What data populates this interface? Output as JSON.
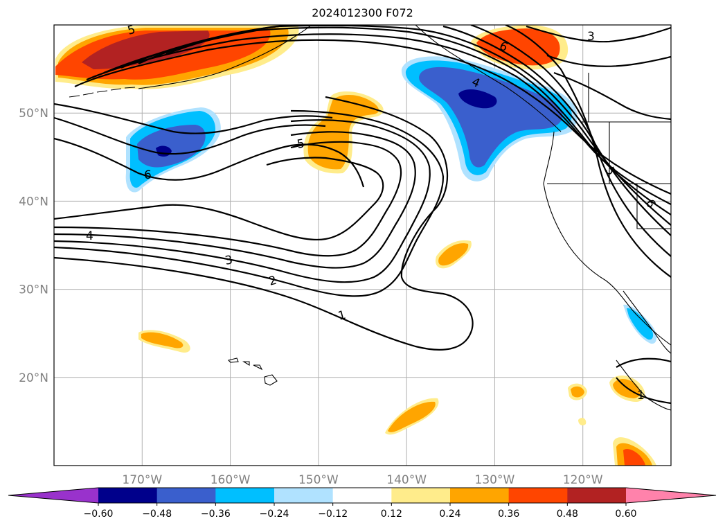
{
  "title": "2024012300 F072",
  "colors": {
    "frame": "#000000",
    "grid": "#b0b0b0",
    "axis_text": "#808080",
    "contour": "#000000",
    "coast": "#000000"
  },
  "map_data": {
    "projection": "PlateCarree",
    "lon_range": [
      -180,
      -110
    ],
    "lat_range": [
      10,
      60
    ],
    "parallels": [
      {
        "lat": 50,
        "label": "50°N"
      },
      {
        "lat": 40,
        "label": "40°N"
      },
      {
        "lat": 30,
        "label": "30°N"
      },
      {
        "lat": 20,
        "label": "20°N"
      }
    ],
    "meridians": [
      {
        "lon": -170,
        "label": "170°W"
      },
      {
        "lon": -160,
        "label": "160°W"
      },
      {
        "lon": -150,
        "label": "150°W"
      },
      {
        "lon": -140,
        "label": "140°W"
      },
      {
        "lon": -130,
        "label": "130°W"
      },
      {
        "lon": -120,
        "label": "120°W"
      }
    ],
    "contour_labels": [
      "1",
      "2",
      "3",
      "4",
      "5",
      "6",
      "1",
      "3",
      "4",
      "5",
      "6",
      "5",
      "6"
    ]
  },
  "colorbar": {
    "colors": [
      "#9932cc",
      "#00008b",
      "#3a5fcd",
      "#00bfff",
      "#b0e2ff",
      "#ffffff",
      "#ffec8b",
      "#ffa500",
      "#ff4500",
      "#b22222",
      "#ff82ab"
    ],
    "tick_labels": [
      "−0.60",
      "−0.48",
      "−0.36",
      "−0.24",
      "−0.12",
      "0.12",
      "0.24",
      "0.36",
      "0.48",
      "0.60"
    ],
    "bounds": [
      -0.6,
      -0.48,
      -0.36,
      -0.24,
      -0.12,
      0.12,
      0.24,
      0.36,
      0.48,
      0.6
    ],
    "extend": "both"
  }
}
